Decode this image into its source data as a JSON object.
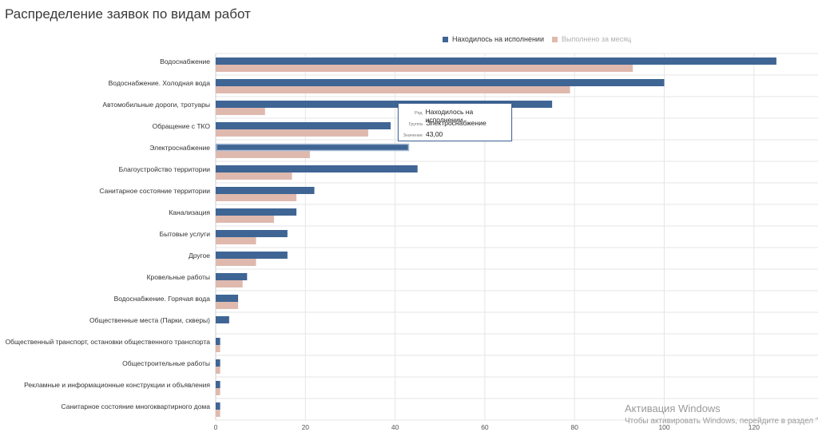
{
  "title": "Распределение заявок по видам работ",
  "colors": {
    "series_1": "#3f6594",
    "series_2": "#dfb9ae",
    "grid": "#e6e6e6",
    "axis": "#cfcfcf"
  },
  "chart_data": {
    "type": "bar",
    "orientation": "horizontal",
    "categories": [
      "Водоснабжение",
      "Водоснабжение. Холодная вода",
      "Автомобильные дороги, тротуары",
      "Обращение с ТКО",
      "Электроснабжение",
      "Благоустройство территории",
      "Санитарное состояние территории",
      "Канализация",
      "Бытовые услуги",
      "Другое",
      "Кровельные работы",
      "Водоснабжение. Горячая вода",
      "Общественные места (Парки, скверы)",
      "Общественный транспорт, остановки общественного транспорта",
      "Общестроительные работы",
      "Рекламные и информационные конструкции и объявления",
      "Санитарное состояние многоквартирного дома"
    ],
    "series": [
      {
        "name": "Находилось на исполнении",
        "values": [
          125,
          100,
          75,
          39,
          43,
          45,
          22,
          18,
          16,
          16,
          7,
          5,
          3,
          1,
          1,
          1,
          1
        ]
      },
      {
        "name": "Выполнено за месяц",
        "values": [
          93,
          79,
          11,
          34,
          21,
          17,
          18,
          13,
          9,
          9,
          6,
          5,
          0,
          1,
          1,
          1,
          1
        ]
      }
    ],
    "xlim": [
      0,
      130
    ],
    "xticks": [
      0,
      20,
      40,
      60,
      80,
      100,
      120
    ],
    "grid": true,
    "legend": "top"
  },
  "tooltip": {
    "series_key": "Ряд",
    "series_value": "Находилось на исполнении",
    "group_key": "Группа",
    "group_value": "Электроснабжение",
    "value_key": "Значение",
    "value_value": "43,00"
  },
  "watermark": {
    "title": "Активация Windows",
    "subtitle": "Чтобы активировать Windows, перейдите в раздел \"П"
  }
}
